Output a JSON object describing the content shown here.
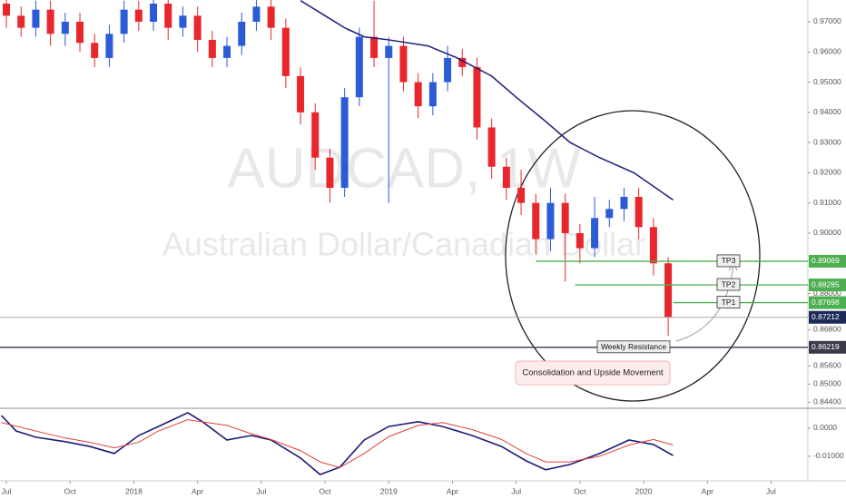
{
  "chart_data": [
    {
      "type": "candlestick",
      "watermark_title": "AUDCAD, 1W",
      "watermark_subtitle": "Australian Dollar/Canadian Dollar",
      "up_color": "#2b5bd7",
      "down_color": "#e8262b",
      "x": [
        0,
        3,
        6,
        9,
        12,
        15,
        18,
        21,
        24,
        27,
        30,
        33,
        36,
        39,
        42,
        45,
        48,
        51,
        54,
        57,
        60,
        63,
        66,
        69,
        72,
        75,
        78,
        81,
        84,
        87,
        90,
        93,
        96,
        99,
        102,
        105,
        108,
        111,
        114,
        117,
        120,
        123,
        126,
        129,
        132,
        135
      ],
      "open": [
        0.976,
        0.972,
        0.968,
        0.974,
        0.966,
        0.97,
        0.963,
        0.958,
        0.966,
        0.974,
        0.97,
        0.976,
        0.968,
        0.972,
        0.964,
        0.958,
        0.962,
        0.97,
        0.975,
        0.968,
        0.952,
        0.94,
        0.925,
        0.915,
        0.945,
        0.965,
        0.958,
        0.962,
        0.95,
        0.942,
        0.95,
        0.958,
        0.955,
        0.935,
        0.922,
        0.915,
        0.91,
        0.898,
        0.91,
        0.9,
        0.895,
        0.905,
        0.908,
        0.912,
        0.902,
        0.89
      ],
      "high": [
        0.979,
        0.975,
        0.977,
        0.977,
        0.973,
        0.973,
        0.966,
        0.969,
        0.977,
        0.977,
        0.979,
        0.979,
        0.975,
        0.975,
        0.967,
        0.965,
        0.973,
        0.978,
        0.978,
        0.971,
        0.955,
        0.943,
        0.928,
        0.948,
        0.968,
        0.977,
        0.965,
        0.965,
        0.953,
        0.953,
        0.962,
        0.961,
        0.958,
        0.938,
        0.925,
        0.921,
        0.913,
        0.915,
        0.913,
        0.903,
        0.912,
        0.911,
        0.915,
        0.915,
        0.905,
        0.892
      ],
      "low": [
        0.968,
        0.965,
        0.965,
        0.962,
        0.962,
        0.96,
        0.955,
        0.955,
        0.963,
        0.967,
        0.967,
        0.964,
        0.965,
        0.96,
        0.955,
        0.955,
        0.959,
        0.967,
        0.964,
        0.948,
        0.936,
        0.921,
        0.91,
        0.912,
        0.942,
        0.955,
        0.91,
        0.947,
        0.938,
        0.939,
        0.947,
        0.952,
        0.931,
        0.918,
        0.911,
        0.906,
        0.893,
        0.894,
        0.884,
        0.89,
        0.892,
        0.902,
        0.904,
        0.898,
        0.886,
        0.866
      ],
      "close": [
        0.972,
        0.968,
        0.974,
        0.966,
        0.97,
        0.963,
        0.958,
        0.966,
        0.974,
        0.97,
        0.976,
        0.968,
        0.972,
        0.964,
        0.958,
        0.962,
        0.97,
        0.975,
        0.968,
        0.952,
        0.94,
        0.925,
        0.915,
        0.945,
        0.965,
        0.958,
        0.962,
        0.95,
        0.942,
        0.95,
        0.958,
        0.955,
        0.935,
        0.922,
        0.915,
        0.91,
        0.898,
        0.91,
        0.9,
        0.895,
        0.905,
        0.908,
        0.912,
        0.902,
        0.89,
        0.87212
      ],
      "moving_average": {
        "color": "#1c1c78",
        "x": [
          60,
          65,
          69,
          73,
          78,
          86,
          92,
          99,
          104,
          110,
          115,
          121,
          128,
          136
        ],
        "values": [
          0.977,
          0.972,
          0.968,
          0.965,
          0.964,
          0.962,
          0.958,
          0.952,
          0.945,
          0.937,
          0.93,
          0.925,
          0.92,
          0.911
        ]
      },
      "levels": [
        {
          "label": "TP3",
          "value": 0.89069,
          "color": "#4caf50",
          "start_x": 108
        },
        {
          "label": "TP2",
          "value": 0.88285,
          "color": "#4caf50",
          "start_x": 116
        },
        {
          "label": "TP1",
          "value": 0.87698,
          "color": "#4caf50",
          "start_x": 136
        }
      ],
      "support": {
        "label": "Weekly Resistance",
        "value": 0.86219,
        "color": "#3a3a4a"
      },
      "last_price": {
        "value": 0.87212,
        "color": "#1e2a5a"
      },
      "note": "Consolidation and Upside Movement",
      "xlim": [
        -1.3,
        163.5
      ],
      "ylim": [
        0.842,
        0.9772
      ],
      "yticks": [
        {
          "value": 0.97,
          "label": "0.97000"
        },
        {
          "value": 0.96,
          "label": "0.96000"
        },
        {
          "value": 0.95,
          "label": "0.95000"
        },
        {
          "value": 0.94,
          "label": "0.94000"
        },
        {
          "value": 0.93,
          "label": "0.93000"
        },
        {
          "value": 0.92,
          "label": "0.92000"
        },
        {
          "value": 0.91,
          "label": "0.91000"
        },
        {
          "value": 0.9,
          "label": "0.90000"
        },
        {
          "value": 0.88,
          "label": "0.88000"
        },
        {
          "value": 0.868,
          "label": "0.86800"
        },
        {
          "value": 0.856,
          "label": "0.85600"
        },
        {
          "value": 0.85,
          "label": "0.85000"
        },
        {
          "value": 0.844,
          "label": "0.84400"
        }
      ]
    },
    {
      "type": "line",
      "xlim": [
        -1.3,
        163.5
      ],
      "ylim": [
        -0.0181,
        0.00645
      ],
      "yticks": [
        {
          "value": 0,
          "label": "0.0000"
        },
        {
          "value": -0.01,
          "label": "-0.01000"
        }
      ],
      "xticks": [
        {
          "value": 0,
          "label": "Jul"
        },
        {
          "value": 13,
          "label": "Oct"
        },
        {
          "value": 26,
          "label": "2018"
        },
        {
          "value": 39,
          "label": "Apr"
        },
        {
          "value": 52,
          "label": "Jul"
        },
        {
          "value": 65,
          "label": "Oct"
        },
        {
          "value": 78,
          "label": "2019"
        },
        {
          "value": 91,
          "label": "Apr"
        },
        {
          "value": 104,
          "label": "Jul"
        },
        {
          "value": 117,
          "label": "Oct"
        },
        {
          "value": 130,
          "label": "2020"
        },
        {
          "value": 143,
          "label": "Apr"
        },
        {
          "value": 156,
          "label": "Jul"
        }
      ],
      "series": [
        {
          "color": "#1c1c78",
          "x": [
            -1,
            2,
            6,
            12,
            17,
            22,
            27,
            31,
            37,
            40,
            45,
            50,
            54,
            60,
            64,
            68,
            73,
            78,
            84,
            89,
            95,
            101,
            106,
            110,
            115,
            121,
            127,
            132,
            136
          ],
          "values": [
            0.0045,
            -0.001,
            -0.0032,
            -0.0048,
            -0.0065,
            -0.009,
            -0.0026,
            0.0006,
            0.0055,
            0.0023,
            -0.0042,
            -0.0026,
            -0.0042,
            -0.0106,
            -0.0165,
            -0.0139,
            -0.0042,
            0.0006,
            0.0023,
            0.0006,
            -0.0026,
            -0.0065,
            -0.0116,
            -0.0148,
            -0.0129,
            -0.009,
            -0.0042,
            -0.0058,
            -0.0097
          ]
        },
        {
          "color": "#e0403a",
          "x": [
            -1,
            6,
            12,
            17,
            22,
            27,
            31,
            37,
            45,
            50,
            54,
            60,
            64,
            68,
            73,
            78,
            84,
            89,
            95,
            101,
            106,
            110,
            115,
            121,
            127,
            132,
            136
          ],
          "values": [
            0.002,
            -0.001,
            -0.0035,
            -0.005,
            -0.007,
            -0.005,
            -0.001,
            0.003,
            0.001,
            -0.002,
            -0.004,
            -0.008,
            -0.012,
            -0.014,
            -0.009,
            -0.003,
            0.001,
            0.002,
            -0.0005,
            -0.004,
            -0.009,
            -0.012,
            -0.012,
            -0.01,
            -0.006,
            -0.004,
            -0.006
          ]
        }
      ]
    }
  ]
}
